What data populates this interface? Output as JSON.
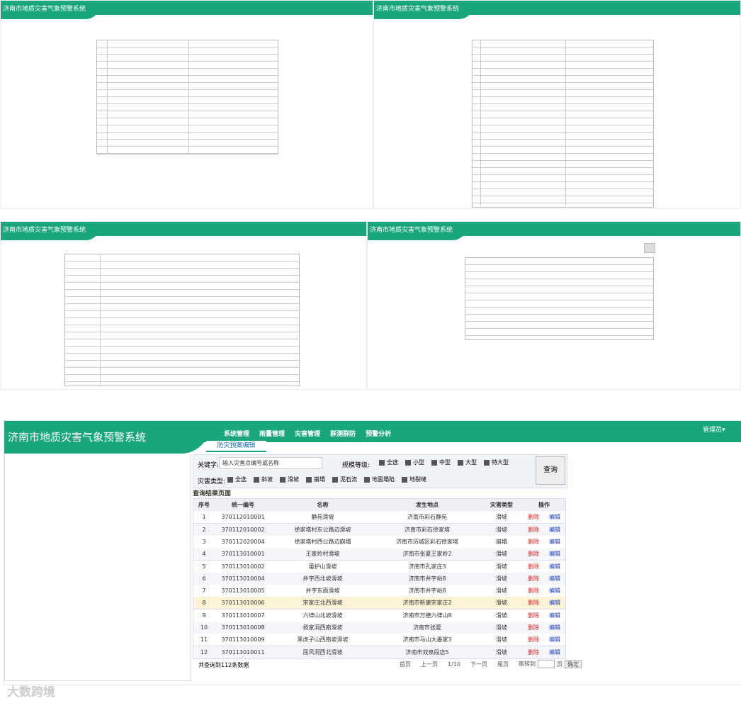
{
  "thumbnails": [
    {
      "title": "济南市地质灾害气象预警系统"
    },
    {
      "title": "济南市地质灾害气象预警系统"
    },
    {
      "title": "济南市地质灾害气象预警系统"
    },
    {
      "title": "济南市地质灾害气象预警系统"
    }
  ],
  "main": {
    "title": "济南市地质灾害气象预警系统",
    "nav": [
      "系统管理",
      "雨量管理",
      "灾害管理",
      "群测群防",
      "预警分析"
    ],
    "user": "管理员▾",
    "tab": "防灾预案编辑",
    "search": {
      "keyword_label": "关键字:",
      "keyword_placeholder": "输入灾害点编号或名称",
      "scale_label": "规模等级:",
      "scales": [
        "全选",
        "小型",
        "中型",
        "大型",
        "特大型"
      ],
      "type_label": "灾害类型:",
      "types": [
        "全选",
        "斜坡",
        "滑坡",
        "崩塌",
        "泥石流",
        "地面塌陷",
        "地裂缝"
      ],
      "button": "查询"
    },
    "result_title": "查询结果页面",
    "table": {
      "headers": [
        "序号",
        "统一编号",
        "名称",
        "发生地点",
        "灾害类型",
        "操作"
      ],
      "rows": [
        [
          "1",
          "370112010001",
          "静苑滑坡",
          "济南市彩石静苑",
          "滑坡"
        ],
        [
          "2",
          "370112010002",
          "徐家塔村东公路边滑坡",
          "济南市彩石徐家塔",
          "滑坡"
        ],
        [
          "3",
          "370112020004",
          "徐家塔村西公路边崩塌",
          "济南市历城区彩石徐家塔",
          "崩塌"
        ],
        [
          "4",
          "370113010001",
          "王家岭村滑坡",
          "济南市张夏王家岭2",
          "滑坡"
        ],
        [
          "5",
          "370113010002",
          "莆护山滑坡",
          "济南市孔家庄3",
          "滑坡"
        ],
        [
          "6",
          "370113010004",
          "井字西北坡滑坡",
          "济南市井字峪8",
          "滑坡"
        ],
        [
          "7",
          "370113010005",
          "井字东面滑坡",
          "济南市井字峪8",
          "滑坡"
        ],
        [
          "8",
          "370113010006",
          "宋家庄北西滑坡",
          "济南市新康宋家庄2",
          "滑坡"
        ],
        [
          "9",
          "370113010007",
          "六律山北坡滑坡",
          "济南市万德六律山8",
          "滑坡"
        ],
        [
          "10",
          "370113010008",
          "扬家洞西南滑坡",
          "济南市张夏",
          "滑坡"
        ],
        [
          "11",
          "370113010009",
          "黑虎子山西南坡滑坡",
          "济南市马山大墨家3",
          "滑坡"
        ],
        [
          "12",
          "370113010011",
          "屈风洞西北滑坡",
          "济南市双泉段店5",
          "滑坡"
        ]
      ],
      "actions": [
        "删除",
        "编辑"
      ]
    },
    "footer": {
      "count": "共查询到112条数据",
      "pager": [
        "首页",
        "上一页",
        "1/10",
        "下一页",
        "尾页"
      ],
      "jump": "跳转到",
      "page": "页",
      "confirm": "确定"
    }
  },
  "watermark": "大数跨境"
}
